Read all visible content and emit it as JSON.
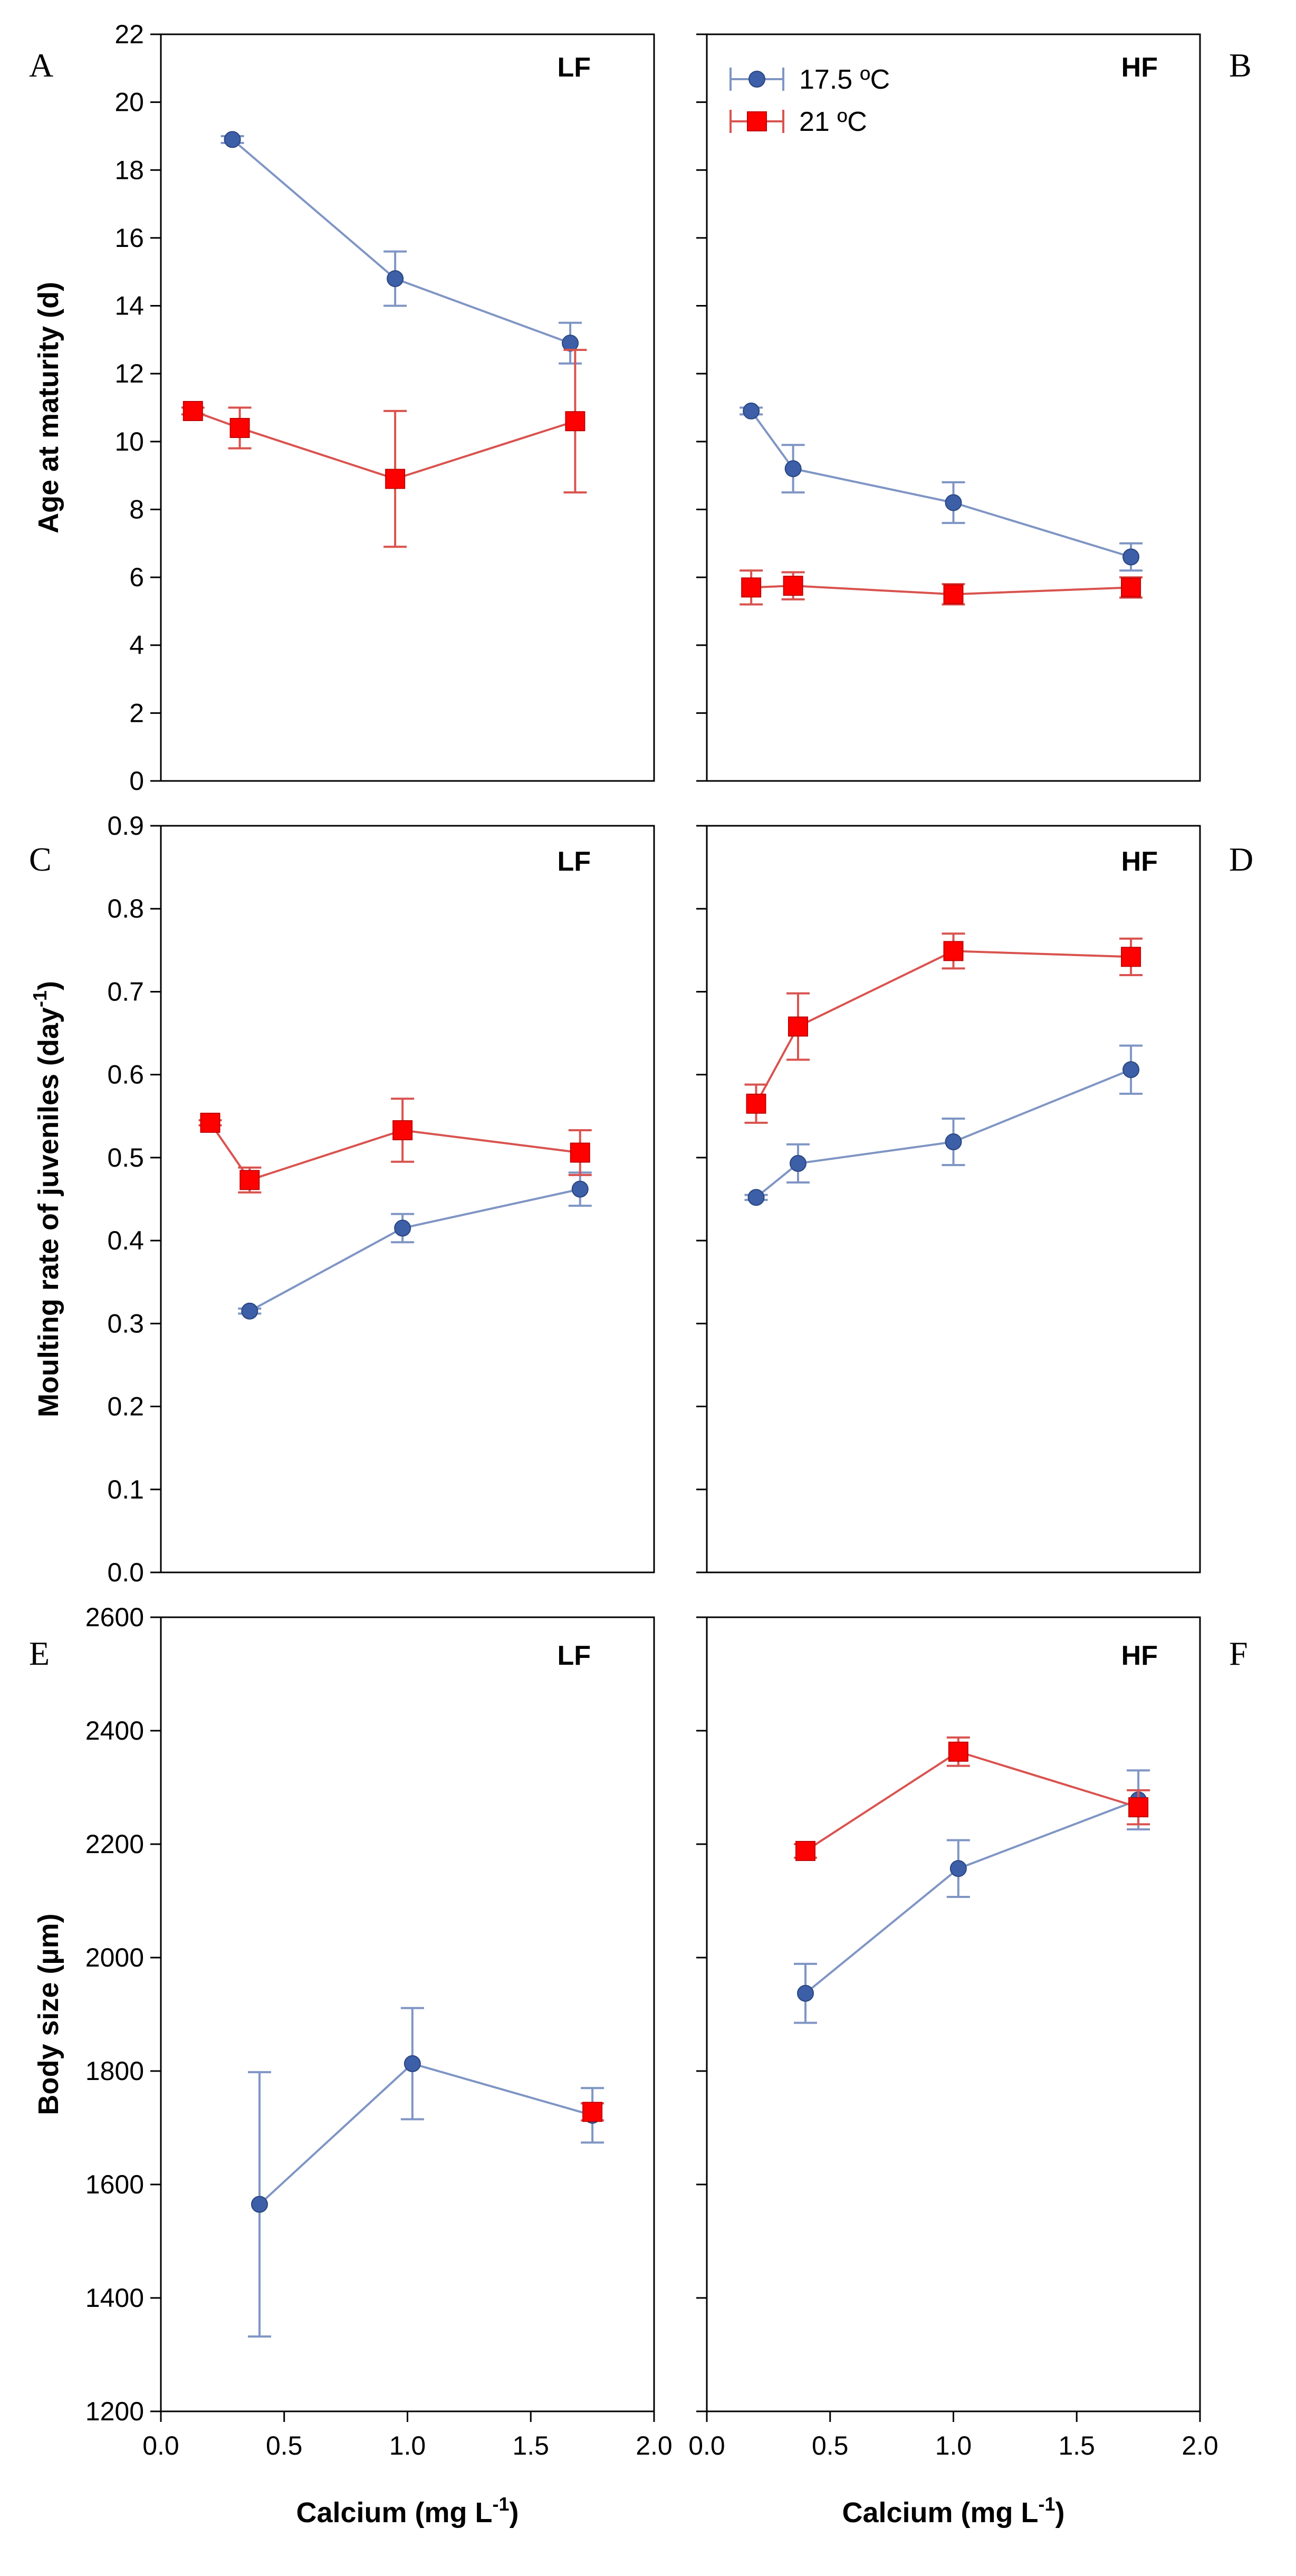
{
  "colors": {
    "s17": "#3c5fa8",
    "s17_line": "#7f95c4",
    "s21": "#ff0000",
    "s21_line": "#d9534f"
  },
  "legend": {
    "s17": "17.5 ºC",
    "s21": "21 ºC"
  },
  "x_axis": {
    "label": "Calcium (mg L",
    "label_sup": "-1",
    "label_end": ")",
    "ticks": [
      "0.0",
      "0.5",
      "1.0",
      "1.5",
      "2.0"
    ]
  },
  "chart_data": [
    {
      "id": "A",
      "panel_label": "A",
      "feed_label": "LF",
      "type": "line",
      "ylabel": "Age at maturity (d)",
      "ylabel_sup": "",
      "ylabel_end": "",
      "ylim": [
        0,
        22
      ],
      "xlim": [
        0,
        2
      ],
      "yticks": [
        "0",
        "2",
        "4",
        "6",
        "8",
        "10",
        "12",
        "14",
        "16",
        "18",
        "20",
        "22"
      ],
      "series": [
        {
          "name": "17.5 ºC",
          "x": [
            0.29,
            0.95,
            1.66
          ],
          "y": [
            18.9,
            14.8,
            12.9
          ],
          "err": [
            0.1,
            0.8,
            0.6
          ]
        },
        {
          "name": "21 ºC",
          "x": [
            0.13,
            0.32,
            0.95,
            1.68
          ],
          "y": [
            10.9,
            10.4,
            8.9,
            10.6
          ],
          "err": [
            0.1,
            0.6,
            2.0,
            2.1
          ]
        }
      ]
    },
    {
      "id": "B",
      "panel_label": "B",
      "feed_label": "HF",
      "type": "line",
      "ylim": [
        0,
        22
      ],
      "xlim": [
        0,
        2
      ],
      "series": [
        {
          "name": "17.5 ºC",
          "x": [
            0.18,
            0.35,
            1.0,
            1.72
          ],
          "y": [
            10.9,
            9.2,
            8.2,
            6.6
          ],
          "err": [
            0.1,
            0.7,
            0.6,
            0.4
          ]
        },
        {
          "name": "21 ºC",
          "x": [
            0.18,
            0.35,
            1.0,
            1.72
          ],
          "y": [
            5.7,
            5.75,
            5.5,
            5.7
          ],
          "err": [
            0.5,
            0.4,
            0.3,
            0.3
          ]
        }
      ]
    },
    {
      "id": "C",
      "panel_label": "C",
      "feed_label": "LF",
      "type": "line",
      "ylabel": "Moulting rate of juveniles (day",
      "ylabel_sup": "-1",
      "ylabel_end": ")",
      "ylim": [
        0,
        0.9
      ],
      "xlim": [
        0,
        2
      ],
      "yticks": [
        "0.0",
        "0.1",
        "0.2",
        "0.3",
        "0.4",
        "0.5",
        "0.6",
        "0.7",
        "0.8",
        "0.9"
      ],
      "series": [
        {
          "name": "17.5 ºC",
          "x": [
            0.36,
            0.98,
            1.7
          ],
          "y": [
            0.315,
            0.415,
            0.462
          ],
          "err": [
            0.003,
            0.017,
            0.02
          ]
        },
        {
          "name": "21 ºC",
          "x": [
            0.2,
            0.36,
            0.98,
            1.7
          ],
          "y": [
            0.542,
            0.473,
            0.533,
            0.506
          ],
          "err": [
            0.003,
            0.015,
            0.038,
            0.027
          ]
        }
      ]
    },
    {
      "id": "D",
      "panel_label": "D",
      "feed_label": "HF",
      "type": "line",
      "ylim": [
        0,
        0.9
      ],
      "xlim": [
        0,
        2
      ],
      "series": [
        {
          "name": "17.5 ºC",
          "x": [
            0.2,
            0.37,
            1.0,
            1.72
          ],
          "y": [
            0.452,
            0.493,
            0.519,
            0.606
          ],
          "err": [
            0.003,
            0.023,
            0.028,
            0.029
          ]
        },
        {
          "name": "21 ºC",
          "x": [
            0.2,
            0.37,
            1.0,
            1.72
          ],
          "y": [
            0.565,
            0.658,
            0.749,
            0.742
          ],
          "err": [
            0.023,
            0.04,
            0.021,
            0.022
          ]
        }
      ]
    },
    {
      "id": "E",
      "panel_label": "E",
      "feed_label": "LF",
      "type": "line",
      "ylabel": "Body size (µm)",
      "ylabel_sup": "",
      "ylabel_end": "",
      "ylim": [
        1200,
        2600
      ],
      "xlim": [
        0,
        2
      ],
      "yticks": [
        "1200",
        "1400",
        "1600",
        "1800",
        "2000",
        "2200",
        "2400",
        "2600"
      ],
      "series": [
        {
          "name": "17.5 ºC",
          "x": [
            0.4,
            1.02,
            1.75
          ],
          "y": [
            1565,
            1813,
            1722
          ],
          "err": [
            233,
            98,
            48
          ]
        },
        {
          "name": "21 ºC",
          "x": [
            1.75
          ],
          "y": [
            1728
          ],
          "err": [
            15
          ]
        }
      ]
    },
    {
      "id": "F",
      "panel_label": "F",
      "feed_label": "HF",
      "type": "line",
      "ylim": [
        1200,
        2600
      ],
      "xlim": [
        0,
        2
      ],
      "series": [
        {
          "name": "17.5 ºC",
          "x": [
            0.4,
            1.02,
            1.75
          ],
          "y": [
            1937,
            2157,
            2278
          ],
          "err": [
            52,
            50,
            52
          ]
        },
        {
          "name": "21 ºC",
          "x": [
            0.4,
            1.02,
            1.75
          ],
          "y": [
            2188,
            2363,
            2265
          ],
          "err": [
            12,
            25,
            30
          ]
        }
      ]
    }
  ]
}
